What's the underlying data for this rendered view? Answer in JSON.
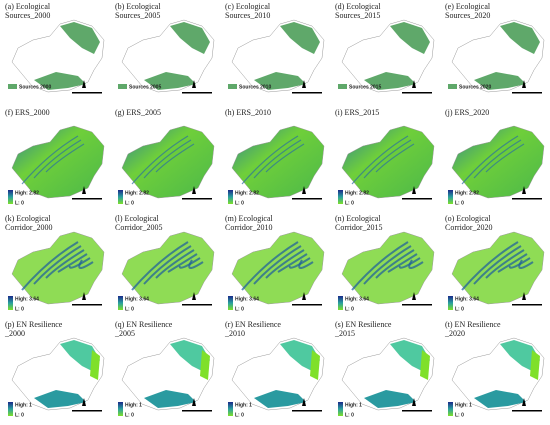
{
  "rows": [
    {
      "panels": [
        {
          "label": [
            "(a) Ecological",
            "Sources_2000"
          ],
          "legend": [
            "Sources 2000"
          ]
        },
        {
          "label": [
            "(b) Ecological",
            "Sources_2005"
          ],
          "legend": [
            "Sources 2005"
          ]
        },
        {
          "label": [
            "(c) Ecological",
            "Sources_2010"
          ],
          "legend": [
            "Sources 2010"
          ]
        },
        {
          "label": [
            "(d) Ecological",
            "Sources_2015"
          ],
          "legend": [
            "Sources 2015"
          ]
        },
        {
          "label": [
            "(e) Ecological",
            "Sources_2020"
          ],
          "legend": [
            "Sources 2020"
          ]
        }
      ]
    },
    {
      "panels": [
        {
          "label": [
            "(f) ERS_2000"
          ],
          "legend": [
            "High: 2.82",
            "L: 0"
          ]
        },
        {
          "label": [
            "(g) ERS_2005"
          ],
          "legend": [
            "High: 2.82",
            "L: 0"
          ]
        },
        {
          "label": [
            "(h) ERS_2010"
          ],
          "legend": [
            "High: 2.82",
            "L: 0"
          ]
        },
        {
          "label": [
            "(i) ERS_2015"
          ],
          "legend": [
            "High: 2.82",
            "L: 0"
          ]
        },
        {
          "label": [
            "(j) ERS_2020"
          ],
          "legend": [
            "High: 2.82",
            "L: 0"
          ]
        }
      ]
    },
    {
      "panels": [
        {
          "label": [
            "(k) Ecological",
            "Corridor_2000"
          ],
          "legend": [
            "High: 3.64",
            "L: 0"
          ]
        },
        {
          "label": [
            "(l) Ecological",
            "Corridor_2005"
          ],
          "legend": [
            "High: 3.64",
            "L: 0"
          ]
        },
        {
          "label": [
            "(m) Ecological",
            "Corridor_2010"
          ],
          "legend": [
            "High: 3.64",
            "L: 0"
          ]
        },
        {
          "label": [
            "(n) Ecological",
            "Corridor_2015"
          ],
          "legend": [
            "High: 3.64",
            "L: 0"
          ]
        },
        {
          "label": [
            "(o) Ecological",
            "Corridor_2020"
          ],
          "legend": [
            "High: 3.64",
            "L: 0"
          ]
        }
      ]
    },
    {
      "panels": [
        {
          "label": [
            "(p) EN Resilience",
            "_2000"
          ],
          "legend": [
            "High: 1",
            "L: 0"
          ]
        },
        {
          "label": [
            "(q) EN Resilience",
            "_2005"
          ],
          "legend": [
            "High: 1",
            "L: 0"
          ]
        },
        {
          "label": [
            "(r) EN Resilience",
            "_2010"
          ],
          "legend": [
            "High: 1",
            "L: 0"
          ]
        },
        {
          "label": [
            "(s) EN Resilience",
            "_2015"
          ],
          "legend": [
            "High: 1",
            "L: 0"
          ]
        },
        {
          "label": [
            "(t) EN Resilience",
            "_2020"
          ],
          "legend": [
            "High: 1",
            "L: 0"
          ]
        }
      ]
    }
  ]
}
